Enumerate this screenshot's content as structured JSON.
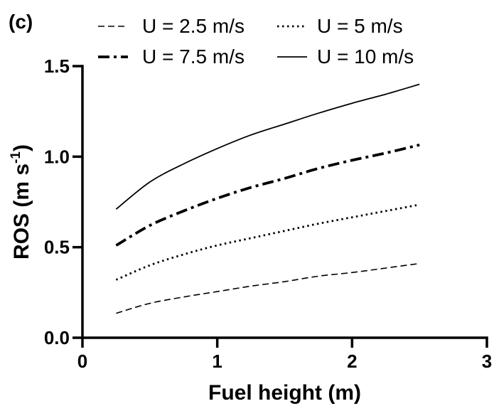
{
  "chart_data": {
    "type": "line",
    "panel_label": "(c)",
    "title": "",
    "xlabel": "Fuel height (m)",
    "ylabel_main": "ROS (m s",
    "ylabel_sup": "-1",
    "ylabel_close": ")",
    "xlim": [
      0,
      3
    ],
    "ylim": [
      0,
      1.5
    ],
    "xticks": [
      0,
      1,
      2,
      3
    ],
    "xtick_labels": [
      "0",
      "1",
      "2",
      "3"
    ],
    "yticks": [
      0,
      0.5,
      1.0,
      1.5
    ],
    "ytick_labels": [
      "0.0",
      "0.5",
      "1.0",
      "1.5"
    ],
    "grid": false,
    "legend_position": "top",
    "x": [
      0.25,
      0.5,
      0.75,
      1.0,
      1.25,
      1.5,
      1.75,
      2.0,
      2.25,
      2.5
    ],
    "series": [
      {
        "name": "U = 2.5 m/s",
        "style": "dashed",
        "values": [
          0.135,
          0.19,
          0.225,
          0.255,
          0.285,
          0.31,
          0.34,
          0.36,
          0.385,
          0.41
        ]
      },
      {
        "name": "U = 5 m/s",
        "style": "dotted",
        "values": [
          0.32,
          0.4,
          0.46,
          0.51,
          0.55,
          0.59,
          0.63,
          0.665,
          0.7,
          0.735
        ]
      },
      {
        "name": "U = 7.5 m/s",
        "style": "dashdot",
        "values": [
          0.51,
          0.62,
          0.7,
          0.77,
          0.83,
          0.88,
          0.935,
          0.98,
          1.02,
          1.065
        ]
      },
      {
        "name": "U = 10 m/s",
        "style": "solid",
        "values": [
          0.71,
          0.86,
          0.96,
          1.045,
          1.12,
          1.18,
          1.24,
          1.295,
          1.345,
          1.4
        ]
      }
    ]
  }
}
